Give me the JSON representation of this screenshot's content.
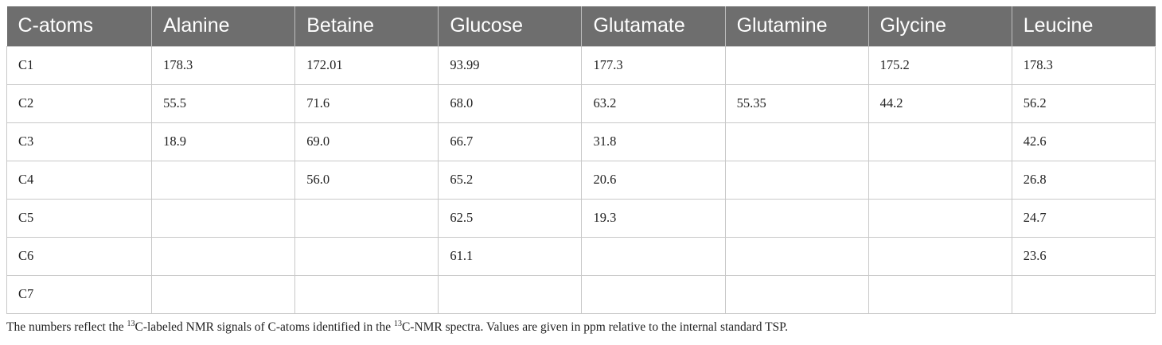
{
  "table": {
    "headers": [
      "C-atoms",
      "Alanine",
      "Betaine",
      "Glucose",
      "Glutamate",
      "Glutamine",
      "Glycine",
      "Leucine"
    ],
    "rows": [
      [
        "C1",
        "178.3",
        "172.01",
        "93.99",
        "177.3",
        "",
        "175.2",
        "178.3"
      ],
      [
        "C2",
        "55.5",
        "71.6",
        "68.0",
        "63.2",
        "55.35",
        "44.2",
        "56.2"
      ],
      [
        "C3",
        "18.9",
        "69.0",
        "66.7",
        "31.8",
        "",
        "",
        "42.6"
      ],
      [
        "C4",
        "",
        "56.0",
        "65.2",
        "20.6",
        "",
        "",
        "26.8"
      ],
      [
        "C5",
        "",
        "",
        "62.5",
        "19.3",
        "",
        "",
        "24.7"
      ],
      [
        "C6",
        "",
        "",
        "61.1",
        "",
        "",
        "",
        "23.6"
      ],
      [
        "C7",
        "",
        "",
        "",
        "",
        "",
        "",
        ""
      ]
    ]
  },
  "footnote": {
    "part1": "The numbers reflect the ",
    "sup1": "13",
    "part2": "C-labeled NMR signals of C-atoms identified in the ",
    "sup2": "13",
    "part3": "C-NMR spectra. Values are given in ppm relative to the internal standard TSP."
  }
}
